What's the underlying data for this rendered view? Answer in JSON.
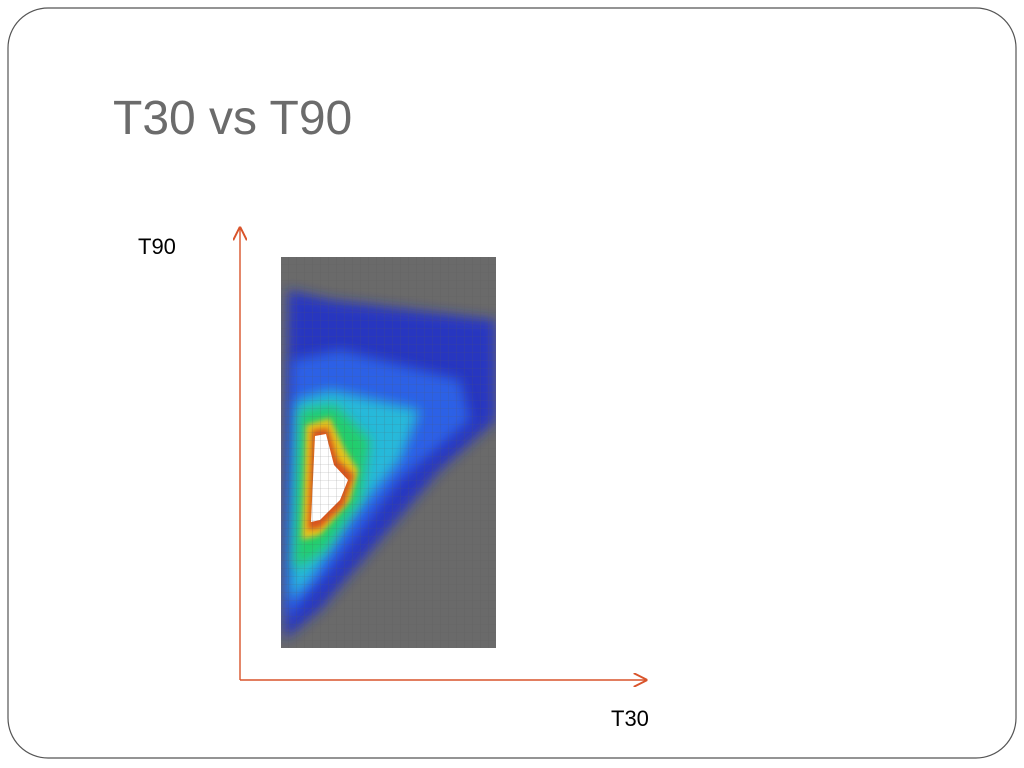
{
  "slide": {
    "title": "T30 vs T90",
    "y_axis_label": "T90",
    "x_axis_label": "T30"
  }
}
